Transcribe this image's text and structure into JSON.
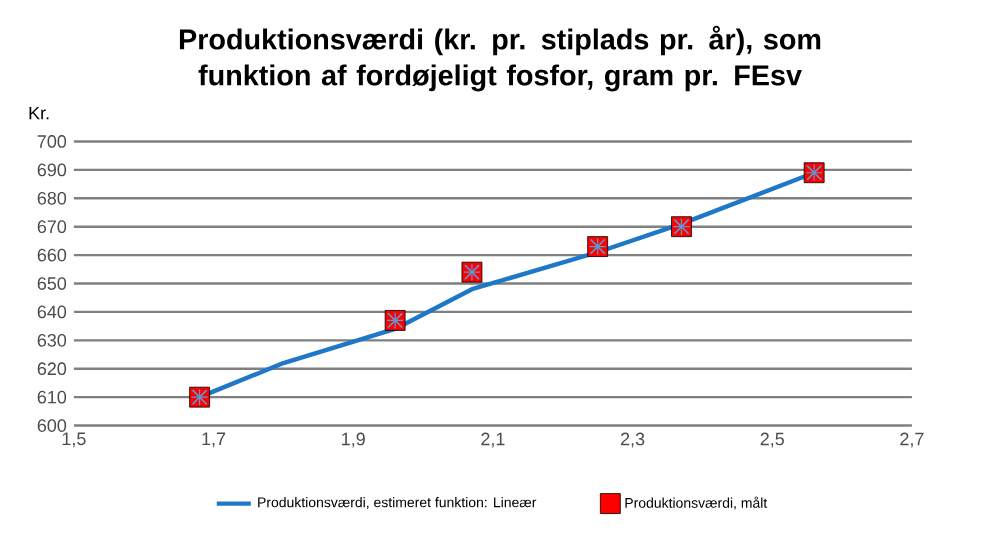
{
  "chart_data": {
    "type": "line",
    "title": "Produktionsværdi (kr. pr. stiplads pr. år),  som funktion af fordøjeligt fosfor, gram pr. FEsv",
    "ylabel": "Kr.",
    "xlim": [
      1.5,
      2.7
    ],
    "xticks": [
      {
        "value": 1.5,
        "label": "1,5"
      },
      {
        "value": 1.7,
        "label": "1,7"
      },
      {
        "value": 1.9,
        "label": "1,9"
      },
      {
        "value": 2.1,
        "label": "2,1"
      },
      {
        "value": 2.3,
        "label": "2,3"
      },
      {
        "value": 2.5,
        "label": "2,5"
      },
      {
        "value": 2.7,
        "label": "2,7"
      }
    ],
    "ylim": [
      600,
      700
    ],
    "yticks": [
      600,
      610,
      620,
      630,
      640,
      650,
      660,
      670,
      680,
      690,
      700
    ],
    "grid": "y",
    "legend": "bottom",
    "series": [
      {
        "name": "Produktionsværdi, estimeret funktion: Lineær",
        "color": "#1f77c8",
        "marker": "none",
        "x": [
          1.68,
          1.8,
          1.96,
          2.07,
          2.25,
          2.37,
          2.56
        ],
        "values": [
          610,
          622,
          634,
          648,
          661,
          671,
          689
        ]
      },
      {
        "name": "Produktionsværdi, målt",
        "type": "scatter",
        "color": "#ff0000",
        "marker": "square",
        "x": [
          1.68,
          1.96,
          2.07,
          2.25,
          2.37,
          2.56
        ],
        "values": [
          610,
          637,
          654,
          663,
          670,
          689
        ]
      }
    ]
  }
}
